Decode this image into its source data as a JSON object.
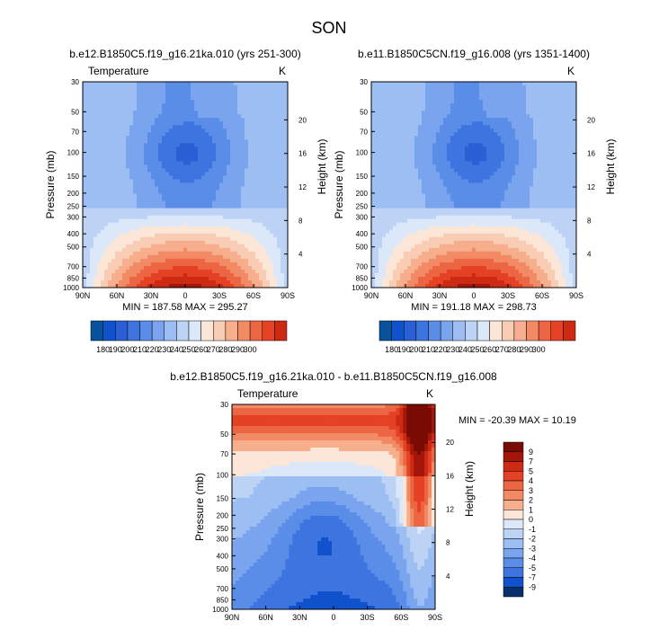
{
  "figure_title": "SON",
  "palette": [
    "#08306b",
    "#08519c",
    "#0f52cc",
    "#2a5fd6",
    "#3d74e0",
    "#5a8de8",
    "#7aa5ee",
    "#9cbef2",
    "#bcd3f6",
    "#dbe8fa",
    "#fbe6d8",
    "#f8cdb4",
    "#f6ae8c",
    "#f28a66",
    "#ec6644",
    "#e44125",
    "#cd2a14",
    "#a4150a",
    "#7a0b04"
  ],
  "chart_data": [
    {
      "type": "heatmap",
      "id": "top-left",
      "title": "b.e12.B1850C5.f19_g16.21ka.010 (yrs 251-300)",
      "subtitle_left": "Temperature",
      "subtitle_right": "K",
      "xlabel": "",
      "ylabel": "Pressure (mb)",
      "ylabel_right": "Height (km)",
      "x_ticks": [
        "90N",
        "60N",
        "30N",
        "0",
        "30S",
        "60S",
        "90S"
      ],
      "y_ticks": [
        "30",
        "50",
        "70",
        "100",
        "150",
        "200",
        "250",
        "300",
        "400",
        "500",
        "700",
        "850",
        "1000"
      ],
      "y_right_ticks": [
        "20",
        "16",
        "12",
        "8",
        "4"
      ],
      "min_max_label": "MIN = 187.58  MAX = 295.27",
      "colorbar_labels": [
        "180",
        "190",
        "200",
        "210",
        "220",
        "230",
        "240",
        "250",
        "260",
        "270",
        "280",
        "290",
        "300"
      ],
      "colorbar_levels": 16,
      "cold_core_pressure": 100
    },
    {
      "type": "heatmap",
      "id": "top-right",
      "title": "b.e11.B1850C5CN.f19_g16.008 (yrs 1351-1400)",
      "subtitle_left": "",
      "subtitle_right": "K",
      "xlabel": "",
      "ylabel": "Pressure (mb)",
      "ylabel_right": "Height (km)",
      "x_ticks": [
        "90N",
        "60N",
        "30N",
        "0",
        "30S",
        "60S",
        "90S"
      ],
      "y_ticks": [
        "30",
        "50",
        "70",
        "100",
        "150",
        "200",
        "250",
        "300",
        "400",
        "500",
        "700",
        "850",
        "1000"
      ],
      "y_right_ticks": [
        "20",
        "16",
        "12",
        "8",
        "4"
      ],
      "min_max_label": "MIN = 191.18  MAX = 298.73",
      "colorbar_labels": [
        "180",
        "190",
        "200",
        "210",
        "220",
        "230",
        "240",
        "250",
        "260",
        "270",
        "280",
        "290",
        "300"
      ],
      "colorbar_levels": 16,
      "cold_core_pressure": 100
    },
    {
      "type": "heatmap",
      "id": "bottom",
      "title": "b.e12.B1850C5.f19_g16.21ka.010 - b.e11.B1850C5CN.f19_g16.008",
      "subtitle_left": "Temperature",
      "subtitle_right": "K",
      "xlabel": "",
      "ylabel": "Pressure (mb)",
      "ylabel_right": "Height (km)",
      "x_ticks": [
        "90N",
        "60N",
        "30N",
        "0",
        "30S",
        "60S",
        "90S"
      ],
      "y_ticks": [
        "30",
        "50",
        "70",
        "100",
        "150",
        "200",
        "250",
        "300",
        "400",
        "500",
        "700",
        "850",
        "1000"
      ],
      "y_right_ticks": [
        "20",
        "16",
        "12",
        "8",
        "4"
      ],
      "min_max_label": "MIN = -20.39  MAX =  10.19",
      "colorbar_labels": [
        "9",
        "7",
        "5",
        "4",
        "3",
        "2",
        "1",
        "0",
        "-1",
        "-2",
        "-3",
        "-4",
        "-5",
        "-7",
        "-9"
      ],
      "diff_colors": [
        "#7a0b04",
        "#a4150a",
        "#cd2a14",
        "#e44125",
        "#ec6644",
        "#f28a66",
        "#f6ae8c",
        "#fbe6d8",
        "#dbe8fa",
        "#bcd3f6",
        "#9cbef2",
        "#7aa5ee",
        "#5a8de8",
        "#3d74e0",
        "#0f52cc",
        "#08306b"
      ]
    }
  ]
}
